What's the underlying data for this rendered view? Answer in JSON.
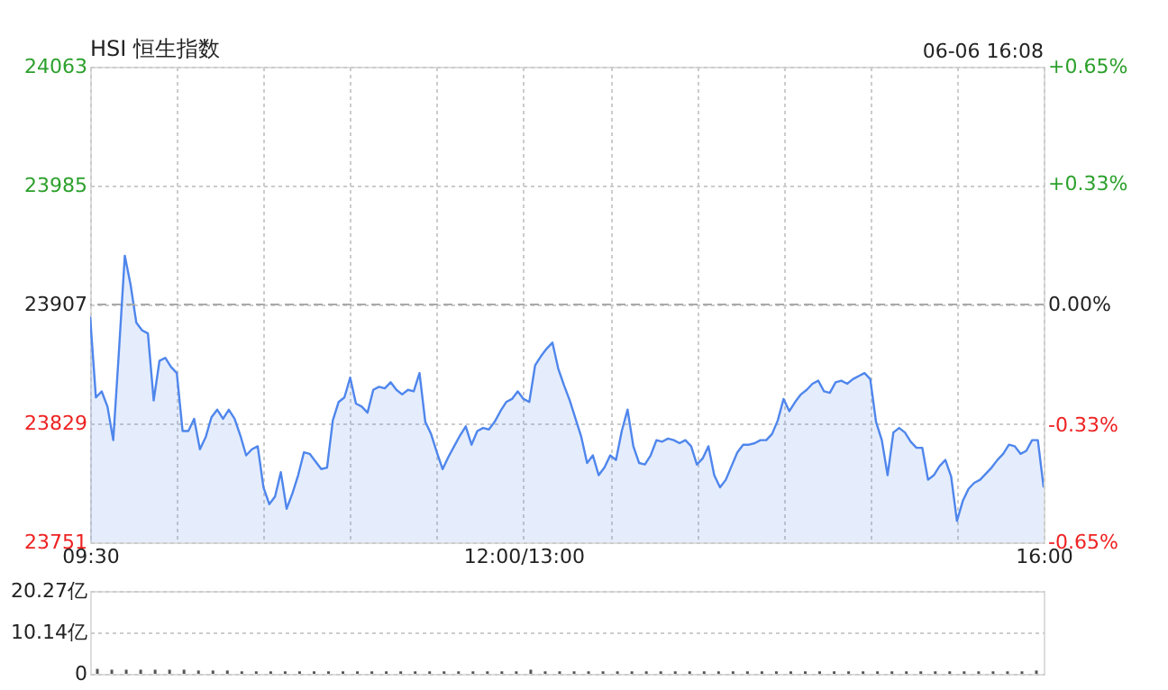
{
  "chart_data": [
    {
      "type": "area",
      "title": "HSI 恒生指数",
      "annotations": [
        "06-06 16:08"
      ],
      "categories": [
        "09:30",
        null,
        null,
        null,
        null,
        null,
        null,
        null,
        null,
        null,
        null,
        null,
        null,
        null,
        null,
        null,
        null,
        null,
        null,
        null,
        null,
        null,
        null,
        null,
        null,
        null,
        null,
        null,
        null,
        null,
        null,
        null,
        null,
        null,
        null,
        null,
        null,
        null,
        null,
        null,
        null,
        null,
        null,
        null,
        null,
        null,
        null,
        null,
        null,
        null,
        null,
        null,
        null,
        null,
        null,
        null,
        null,
        null,
        null,
        null,
        null,
        null,
        null,
        null,
        null,
        null,
        null,
        null,
        null,
        null,
        null,
        null,
        null,
        null,
        null,
        "12:00/13:00",
        null,
        null,
        null,
        null,
        null,
        null,
        null,
        null,
        null,
        null,
        null,
        null,
        null,
        null,
        null,
        null,
        null,
        null,
        null,
        null,
        null,
        null,
        null,
        null,
        null,
        null,
        null,
        null,
        null,
        null,
        null,
        null,
        null,
        null,
        null,
        null,
        null,
        null,
        null,
        null,
        null,
        null,
        null,
        null,
        null,
        null,
        null,
        null,
        null,
        null,
        null,
        null,
        null,
        null,
        null,
        null,
        null,
        null,
        null,
        null,
        null,
        null,
        null,
        null,
        null,
        null,
        null,
        null,
        null,
        null,
        null,
        null,
        null,
        null,
        null,
        null,
        null,
        null,
        null,
        null,
        null,
        null,
        null,
        null,
        null,
        null,
        null,
        null,
        null,
        "16:00"
      ],
      "series": [
        {
          "color": "#4f86ec",
          "values": [
            23899,
            23846,
            23850,
            23840,
            23818,
            23877,
            23939,
            23920,
            23895,
            23890,
            23888,
            23844,
            23870,
            23872,
            23866,
            23862,
            23824,
            23824,
            23832,
            23812,
            23820,
            23833,
            23838,
            23832,
            23838,
            23832,
            23821,
            23808,
            23812,
            23814,
            23787,
            23776,
            23781,
            23797,
            23773,
            23783,
            23795,
            23810,
            23809,
            23804,
            23799,
            23800,
            23831,
            23843,
            23846,
            23859,
            23842,
            23840,
            23836,
            23851,
            23853,
            23852,
            23856,
            23851,
            23848,
            23851,
            23850,
            23862,
            23830,
            23822,
            23810,
            23799,
            23807,
            23814,
            23821,
            23827,
            23815,
            23824,
            23826,
            23825,
            23830,
            23837,
            23843,
            23845,
            23850,
            23845,
            23843,
            23867,
            23873,
            23878,
            23882,
            23865,
            23854,
            23844,
            23832,
            23820,
            23803,
            23808,
            23795,
            23800,
            23808,
            23805,
            23824,
            23838,
            23814,
            23803,
            23802,
            23808,
            23818,
            23817,
            23819,
            23818,
            23816,
            23818,
            23814,
            23802,
            23806,
            23814,
            23795,
            23787,
            23792,
            23801,
            23810,
            23815,
            23815,
            23816,
            23818,
            23818,
            23822,
            23831,
            23845,
            23837,
            23843,
            23848,
            23851,
            23855,
            23857,
            23850,
            23849,
            23856,
            23857,
            23855,
            23858,
            23860,
            23862,
            23858,
            23830,
            23818,
            23795,
            23823,
            23826,
            23823,
            23817,
            23813,
            23813,
            23792,
            23795,
            23801,
            23805,
            23794,
            23765,
            23778,
            23786,
            23790,
            23792,
            23796,
            23800,
            23805,
            23809,
            23815,
            23814,
            23809,
            23811,
            23818,
            23818,
            23787
          ]
        }
      ],
      "ylim": [
        23751,
        24063
      ],
      "yticks": [
        23751,
        23829,
        23907,
        23985,
        24063
      ],
      "y2lim": [
        -0.65,
        0.65
      ],
      "y2ticks": [
        {
          "value": -0.65,
          "label": "-0.65%"
        },
        {
          "value": -0.33,
          "label": "-0.33%"
        },
        {
          "value": 0,
          "label": "0.00%"
        },
        {
          "value": 0.33,
          "label": "+0.33%"
        },
        {
          "value": 0.65,
          "label": "+0.65%"
        }
      ],
      "ref_lines": [
        {
          "axis": "y",
          "value": 23907,
          "line_style": "dashed",
          "color": "#aaaaaa"
        }
      ],
      "grid": true
    },
    {
      "type": "bar",
      "categories": [
        null,
        null,
        null,
        null,
        null,
        null,
        null,
        null,
        null,
        null,
        null,
        null,
        null,
        null,
        null,
        null,
        null,
        null,
        null,
        null,
        null,
        null,
        null,
        null,
        null,
        null,
        null,
        null,
        null,
        null,
        null,
        null,
        null,
        null,
        null,
        null,
        null,
        null,
        null,
        null,
        null,
        null,
        null,
        null,
        null,
        null,
        null,
        null,
        null,
        null,
        null,
        null,
        null,
        null,
        null,
        null,
        null,
        null,
        null,
        null,
        null,
        null,
        null,
        null,
        null,
        null
      ],
      "series": [
        {
          "color": "#555555",
          "values": [
            1.2,
            1.0,
            1.0,
            1.0,
            1.0,
            1.0,
            1.0,
            0.8,
            0.8,
            0.8,
            0.6,
            0.6,
            0.6,
            0.6,
            0.6,
            0.6,
            0.6,
            0.6,
            0.6,
            0.6,
            0.6,
            0.6,
            0.6,
            0.6,
            0.6,
            0.6,
            0.6,
            0.6,
            0.6,
            0.6,
            1.0,
            0.6,
            0.6,
            0.6,
            0.6,
            0.6,
            0.6,
            0.6,
            0.6,
            0.6,
            0.6,
            0.6,
            0.6,
            0.6,
            0.6,
            0.6,
            0.6,
            0.6,
            0.6,
            0.6,
            0.6,
            0.6,
            0.6,
            0.6,
            0.6,
            0.6,
            0.6,
            0.6,
            0.6,
            0.6,
            0.6,
            0.6,
            0.6,
            0.6,
            0.6,
            0.8
          ]
        }
      ],
      "ylim": [
        0,
        20.27
      ],
      "yticks": [
        0,
        {
          "value": 10.14,
          "label": "10.14亿"
        },
        {
          "value": 20.27,
          "label": "20.27亿"
        }
      ],
      "tick_labels": "y",
      "grid": "y"
    }
  ]
}
